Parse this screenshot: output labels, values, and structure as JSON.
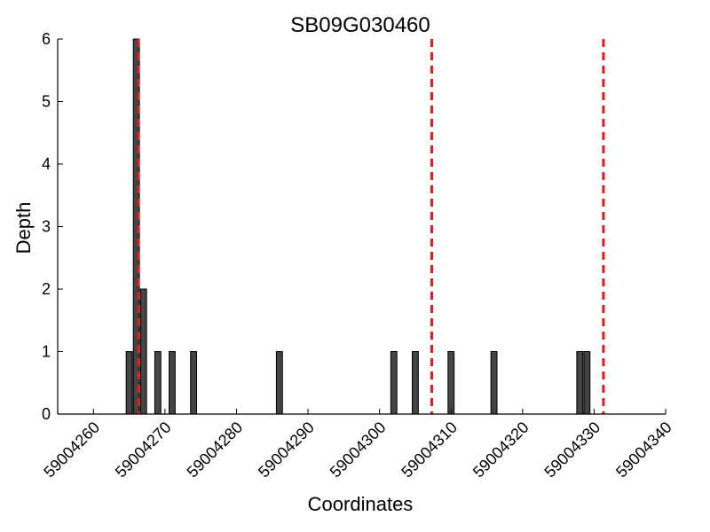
{
  "chart_data": {
    "type": "bar",
    "title": "SB09G030460",
    "xlabel": "Coordinates",
    "ylabel": "Depth",
    "xlim": [
      59004255,
      59004340
    ],
    "ylim": [
      0,
      6
    ],
    "xticks": [
      59004260,
      59004270,
      59004280,
      59004290,
      59004300,
      59004310,
      59004320,
      59004330,
      59004340
    ],
    "yticks": [
      0,
      1,
      2,
      3,
      4,
      5,
      6
    ],
    "grid": false,
    "bars": [
      {
        "x": 59004265,
        "value": 1
      },
      {
        "x": 59004266,
        "value": 6
      },
      {
        "x": 59004267,
        "value": 2
      },
      {
        "x": 59004269,
        "value": 1
      },
      {
        "x": 59004271,
        "value": 1
      },
      {
        "x": 59004274,
        "value": 1
      },
      {
        "x": 59004286,
        "value": 1
      },
      {
        "x": 59004302,
        "value": 1
      },
      {
        "x": 59004305,
        "value": 1
      },
      {
        "x": 59004310,
        "value": 1
      },
      {
        "x": 59004316,
        "value": 1
      },
      {
        "x": 59004328,
        "value": 1
      },
      {
        "x": 59004329,
        "value": 1
      }
    ],
    "marker_lines": [
      59004266.3,
      59004307.3,
      59004331.3
    ],
    "marker_color": "#e41a1c",
    "bar_color": "#444444"
  }
}
